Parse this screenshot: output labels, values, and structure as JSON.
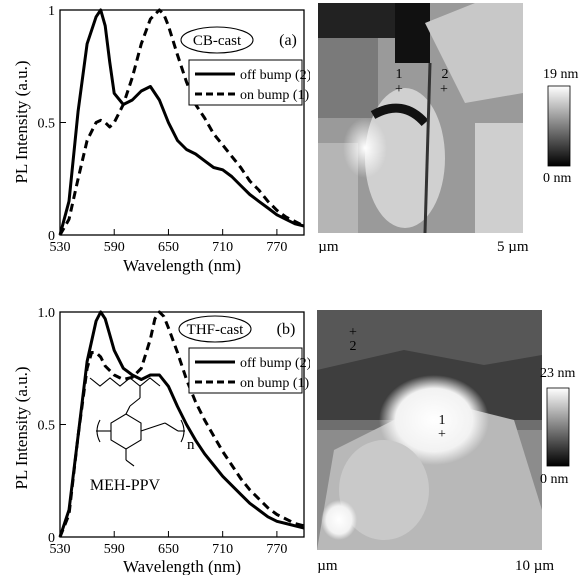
{
  "colors": {
    "line": "#000000",
    "background": "#ffffff"
  },
  "chart_data": [
    {
      "type": "line",
      "panel_label": "(a)",
      "sample_label": "CB-cast",
      "xlabel": "Wavelength (nm)",
      "ylabel": "PL Intensity (a.u.)",
      "xlim": [
        530,
        800
      ],
      "ylim": [
        0,
        1
      ],
      "x_ticks": [
        "530",
        "590",
        "650",
        "710",
        "770"
      ],
      "x_tick_values": [
        530,
        590,
        650,
        710,
        770
      ],
      "y_ticks": [
        "0",
        "0.5",
        "1"
      ],
      "y_tick_values": [
        0,
        0.5,
        1
      ],
      "legend_position": "right, below sample label",
      "series": [
        {
          "name": "off bump (2)",
          "style": "solid",
          "x": [
            530,
            540,
            550,
            560,
            570,
            575,
            580,
            585,
            590,
            600,
            610,
            620,
            630,
            640,
            650,
            660,
            670,
            680,
            690,
            700,
            710,
            720,
            730,
            740,
            750,
            760,
            770,
            780,
            790,
            800
          ],
          "y": [
            0.0,
            0.15,
            0.55,
            0.85,
            0.97,
            1.0,
            0.93,
            0.77,
            0.63,
            0.58,
            0.6,
            0.64,
            0.66,
            0.6,
            0.5,
            0.42,
            0.38,
            0.36,
            0.33,
            0.3,
            0.29,
            0.26,
            0.22,
            0.18,
            0.15,
            0.12,
            0.09,
            0.07,
            0.05,
            0.04
          ]
        },
        {
          "name": "on bump (1)",
          "style": "dashed",
          "x": [
            530,
            540,
            550,
            560,
            570,
            575,
            580,
            585,
            590,
            600,
            610,
            620,
            630,
            640,
            645,
            650,
            660,
            670,
            680,
            690,
            700,
            710,
            720,
            730,
            740,
            750,
            760,
            770,
            780,
            790,
            800
          ],
          "y": [
            0.0,
            0.07,
            0.25,
            0.42,
            0.5,
            0.51,
            0.5,
            0.48,
            0.5,
            0.58,
            0.7,
            0.85,
            0.96,
            1.0,
            0.98,
            0.93,
            0.8,
            0.68,
            0.58,
            0.52,
            0.45,
            0.4,
            0.35,
            0.3,
            0.24,
            0.2,
            0.15,
            0.11,
            0.08,
            0.06,
            0.04
          ]
        }
      ]
    },
    {
      "type": "line",
      "panel_label": "(b)",
      "sample_label": "THF-cast",
      "xlabel": "Wavelength (nm)",
      "ylabel": "PL Intensity (a.u.)",
      "xlim": [
        530,
        800
      ],
      "ylim": [
        0,
        1
      ],
      "x_ticks": [
        "530",
        "590",
        "650",
        "710",
        "770"
      ],
      "x_tick_values": [
        530,
        590,
        650,
        710,
        770
      ],
      "y_ticks": [
        "0",
        "0.5",
        "1.0"
      ],
      "y_tick_values": [
        0,
        0.5,
        1
      ],
      "legend_position": "right, below sample label",
      "inset_label": "MEH-PPV",
      "inset_subscript": "n",
      "series": [
        {
          "name": "off bump (2)",
          "style": "solid",
          "x": [
            530,
            540,
            550,
            560,
            570,
            575,
            580,
            585,
            590,
            600,
            610,
            620,
            630,
            640,
            650,
            660,
            670,
            680,
            690,
            700,
            710,
            720,
            730,
            740,
            750,
            760,
            770,
            780,
            790,
            800
          ],
          "y": [
            0.0,
            0.12,
            0.45,
            0.78,
            0.96,
            1.0,
            0.97,
            0.9,
            0.83,
            0.75,
            0.72,
            0.7,
            0.72,
            0.72,
            0.67,
            0.58,
            0.5,
            0.43,
            0.37,
            0.32,
            0.27,
            0.23,
            0.19,
            0.15,
            0.12,
            0.09,
            0.07,
            0.06,
            0.05,
            0.04
          ]
        },
        {
          "name": "on bump (1)",
          "style": "dashed",
          "x": [
            530,
            540,
            550,
            560,
            565,
            570,
            575,
            580,
            590,
            600,
            610,
            620,
            630,
            635,
            640,
            645,
            650,
            660,
            670,
            680,
            690,
            700,
            710,
            720,
            730,
            740,
            750,
            760,
            770,
            780,
            790,
            800
          ],
          "y": [
            0.0,
            0.1,
            0.45,
            0.75,
            0.82,
            0.82,
            0.8,
            0.76,
            0.72,
            0.7,
            0.71,
            0.75,
            0.88,
            0.97,
            1.0,
            0.98,
            0.93,
            0.82,
            0.7,
            0.6,
            0.52,
            0.45,
            0.38,
            0.32,
            0.26,
            0.21,
            0.17,
            0.13,
            0.1,
            0.08,
            0.06,
            0.05
          ]
        }
      ]
    }
  ],
  "afm": [
    {
      "x_start": "0 µm",
      "x_end": "5 µm",
      "scale_max": "19 nm",
      "scale_min": "0 nm",
      "markers": [
        {
          "label": "1"
        },
        {
          "label": "2"
        }
      ]
    },
    {
      "x_start": "0 µm",
      "x_end": "10 µm",
      "scale_max": "23 nm",
      "scale_min": "0 nm",
      "markers": [
        {
          "label": "2"
        },
        {
          "label": "1"
        }
      ]
    }
  ]
}
